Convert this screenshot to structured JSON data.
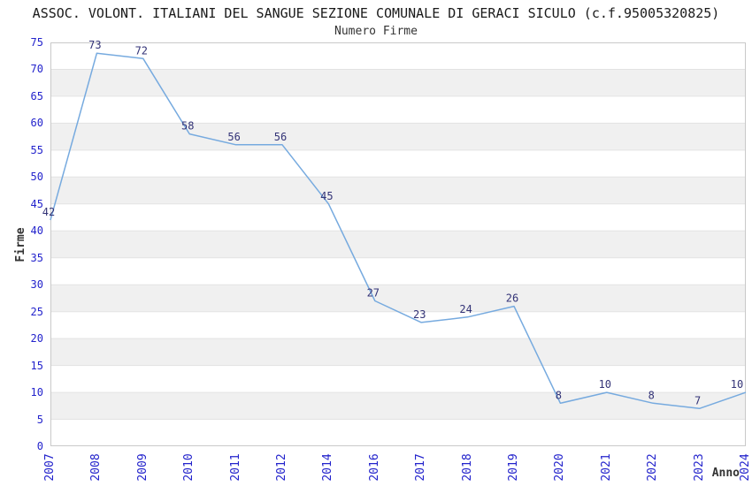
{
  "header": {
    "title": "ASSOC. VOLONT. ITALIANI DEL SANGUE SEZIONE COMUNALE DI GERACI SICULO (c.f.95005320825)",
    "subtitle": "Numero Firme"
  },
  "chart_data": {
    "type": "line",
    "title": "ASSOC. VOLONT. ITALIANI DEL SANGUE SEZIONE COMUNALE DI GERACI SICULO (c.f.95005320825)",
    "subtitle": "Numero Firme",
    "xlabel": "Anno",
    "ylabel": "Firme",
    "categories": [
      "2007",
      "2008",
      "2009",
      "2010",
      "2011",
      "2012",
      "2014",
      "2016",
      "2017",
      "2018",
      "2019",
      "2020",
      "2021",
      "2022",
      "2023",
      "2024"
    ],
    "values": [
      42,
      73,
      72,
      58,
      56,
      56,
      45,
      27,
      23,
      24,
      26,
      8,
      10,
      8,
      7,
      10
    ],
    "ylim": [
      0,
      75
    ],
    "ytick_step": 5,
    "yticks": [
      0,
      5,
      10,
      15,
      20,
      25,
      30,
      35,
      40,
      45,
      50,
      55,
      60,
      65,
      70,
      75
    ],
    "grid": "alternating horizontal gray bands every 5 units, thin gridlines at band edges",
    "legend_position": "none",
    "markers": "none, labels above each point",
    "colors": {
      "line": "#76aadf",
      "band": "#f0f0f0",
      "grid": "#e2e2e2",
      "border": "#c9c9c9",
      "tick_label": "#2323cc",
      "data_label": "#333377",
      "title": "#1a1a1a",
      "subtitle": "#333333",
      "axis_title": "#333333",
      "background": "#ffffff"
    }
  }
}
